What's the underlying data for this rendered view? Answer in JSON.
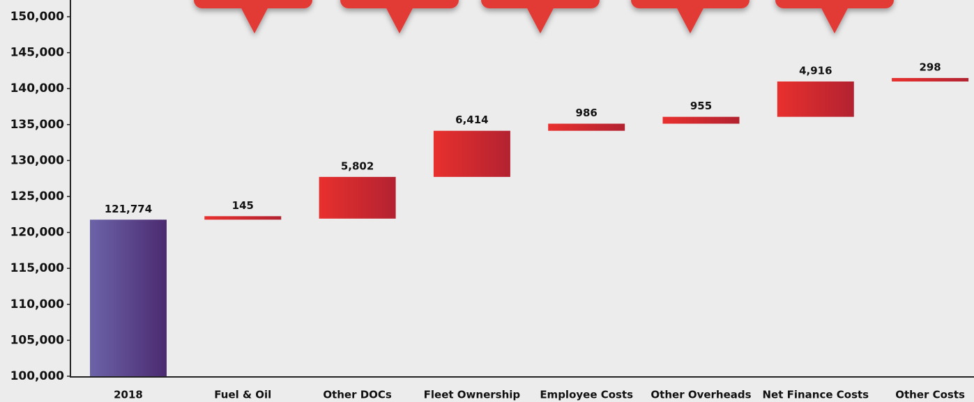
{
  "chart_data": {
    "type": "waterfall",
    "categories": [
      "2018",
      "Fuel & Oil",
      "Other DOCs",
      "Fleet Ownership",
      "Employee Costs",
      "Other Overheads",
      "Net Finance Costs",
      "Other Costs"
    ],
    "values": [
      121774,
      145,
      5802,
      6414,
      986,
      955,
      4916,
      298
    ],
    "value_labels": [
      "121,774",
      "145",
      "5,802",
      "6,414",
      "986",
      "955",
      "4,916",
      "298"
    ],
    "colors": {
      "base": [
        "#6c63a8",
        "#4b2a70"
      ],
      "increase": [
        "#e8302e",
        "#b32230"
      ]
    },
    "ylim": [
      100000,
      150000
    ],
    "yticks": [
      {
        "value": 100000,
        "label": "100,000"
      },
      {
        "value": 105000,
        "label": "105,000"
      },
      {
        "value": 110000,
        "label": "110,000"
      },
      {
        "value": 115000,
        "label": "115,000"
      },
      {
        "value": 120000,
        "label": "120,000"
      },
      {
        "value": 125000,
        "label": "125,000"
      },
      {
        "value": 130000,
        "label": "130,000"
      },
      {
        "value": 135000,
        "label": "135,000"
      },
      {
        "value": 140000,
        "label": "140,000"
      },
      {
        "value": 145000,
        "label": "145,000"
      },
      {
        "value": 150000,
        "label": "150,000"
      }
    ]
  }
}
